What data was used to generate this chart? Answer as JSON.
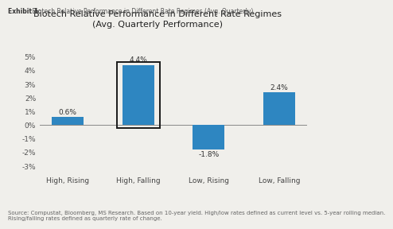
{
  "title_line1": "Biotech Relative Performance in Different Rate Regimes",
  "title_line2": "(Avg. Quarterly Performance)",
  "exhibit_label": "Exhibit 1:",
  "exhibit_desc": " Biotech Relative Performance in Different Rate Regimes (Avg. Quarterly)",
  "categories": [
    "High, Rising",
    "High, Falling",
    "Low, Rising",
    "Low, Falling"
  ],
  "values": [
    0.6,
    4.4,
    -1.8,
    2.4
  ],
  "bar_color": "#2e86c1",
  "bar_width": 0.45,
  "ylim": [
    -3.5,
    5.8
  ],
  "yticks": [
    -3,
    -2,
    -1,
    0,
    1,
    2,
    3,
    4,
    5
  ],
  "highlight_bar_index": 1,
  "highlight_box_color": "#1a1a1a",
  "value_labels": [
    "0.6%",
    "4.4%",
    "-1.8%",
    "2.4%"
  ],
  "source_text": "Source: Compustat, Bloomberg, MS Research. Based on 10-year yield. High/low rates defined as current level vs. 5-year rolling median.\nRising/falling rates defined as quarterly rate of change.",
  "background_color": "#f0efeb",
  "title_fontsize": 8.0,
  "axis_label_fontsize": 6.5,
  "tick_fontsize": 6.5,
  "source_fontsize": 5.0,
  "exhibit_fontsize": 5.5,
  "value_label_fontsize": 6.5
}
